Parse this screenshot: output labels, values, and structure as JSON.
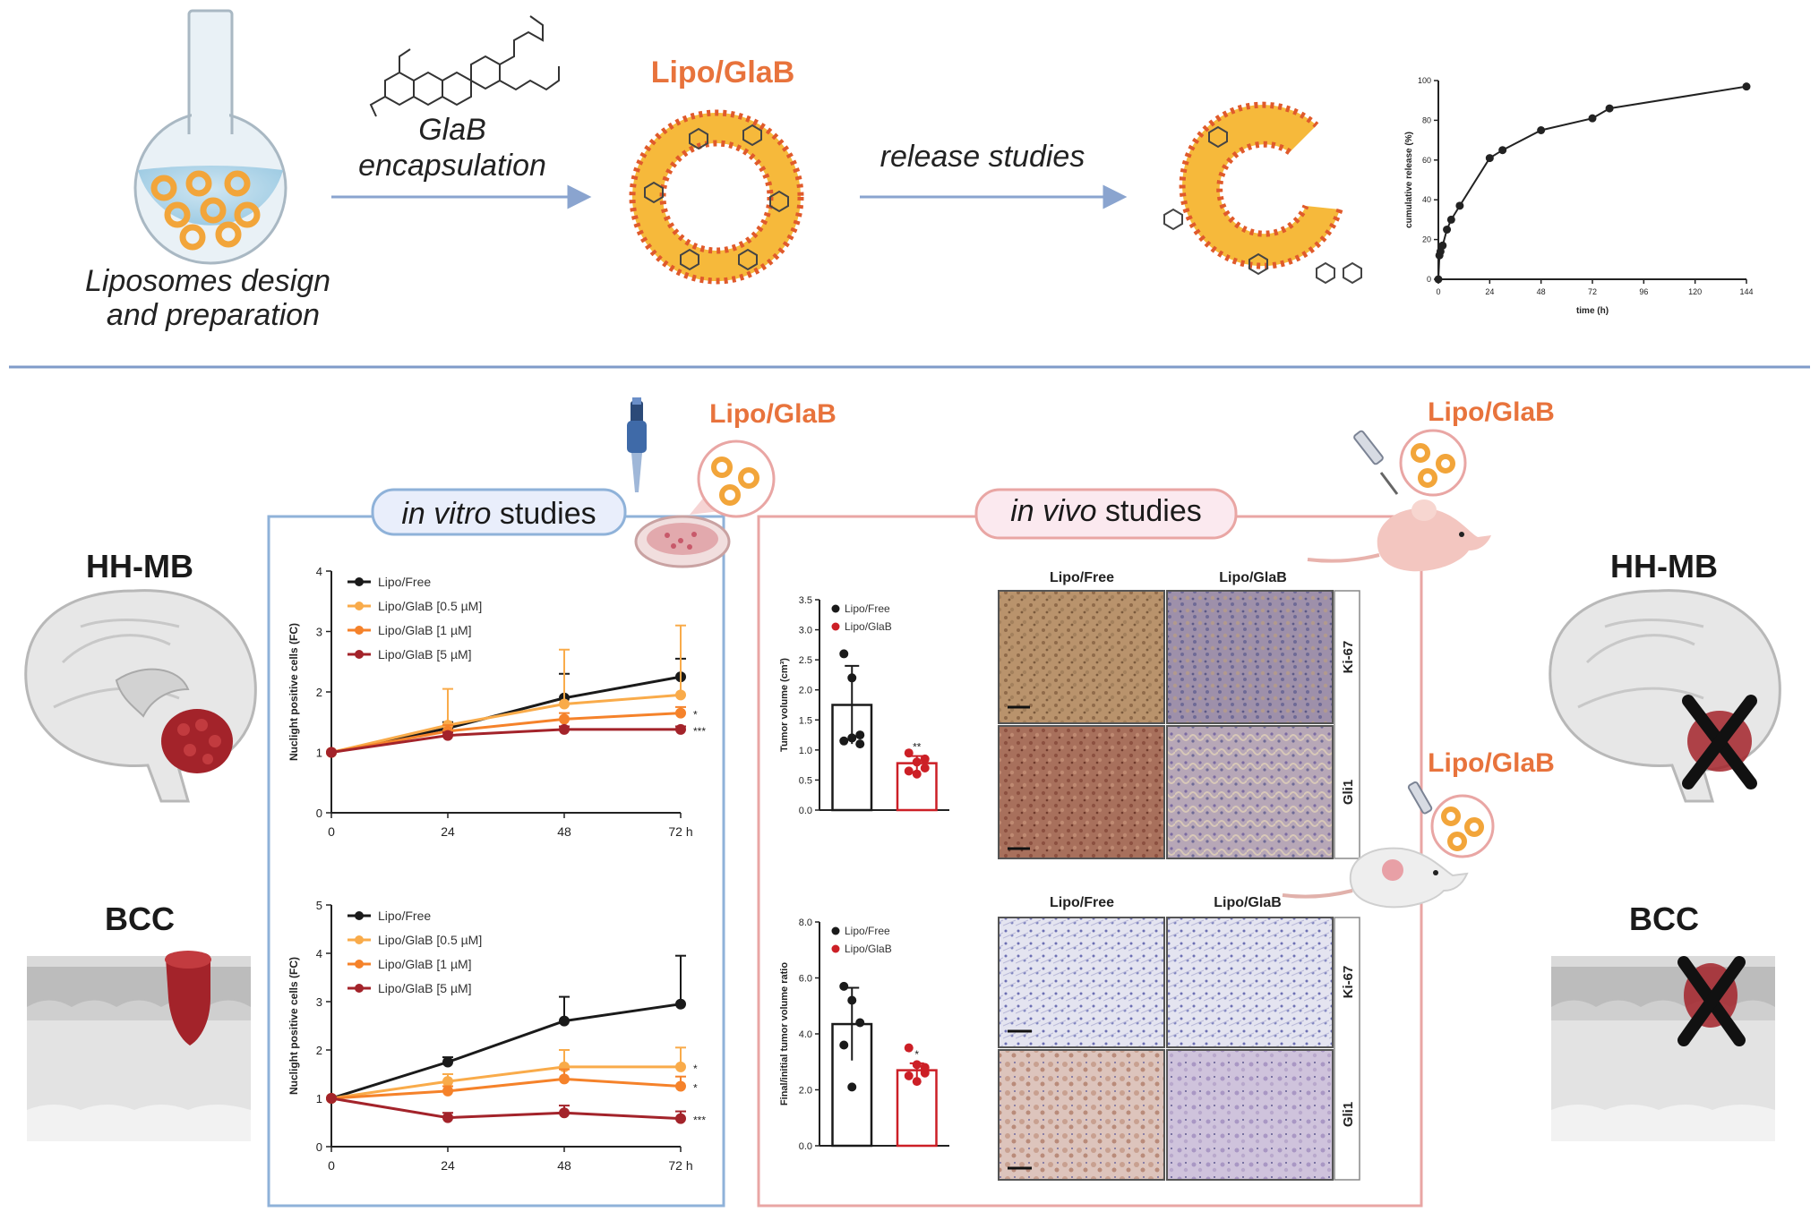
{
  "header": {
    "prep_label_line1": "Liposomes design",
    "prep_label_line2": "and preparation",
    "encap_label_line1": "GlaB",
    "encap_label_line2": "encapsulation",
    "lipo_title": "Lipo/GlaB",
    "release_label": "release studies"
  },
  "labels": {
    "lipo_glab": "Lipo/GlaB",
    "hh_mb": "HH-MB",
    "bcc": "BCC",
    "in_vitro_italic": "in vitro",
    "in_vivo_italic": "in vivo",
    "studies": " studies",
    "lipo_free": "Lipo/Free",
    "ki67": "Ki-67",
    "gli1": "Gli1"
  },
  "colors": {
    "orange": "#e8733c",
    "blue_frame": "#8fb2d9",
    "pink_frame": "#e9a6a4",
    "dark_red": "#a3232a",
    "black": "#1a1a1a",
    "mid_orange": "#f5822a",
    "light_orange": "#f9ab4a"
  },
  "chart_data": [
    {
      "type": "line",
      "x": [
        0,
        0.5,
        1,
        2,
        4,
        6,
        10,
        24,
        30,
        48,
        72,
        80,
        144
      ],
      "values": [
        0,
        12,
        14,
        17,
        25,
        30,
        37,
        61,
        65,
        75,
        81,
        86,
        97
      ],
      "xticks": [
        "0",
        "24",
        "48",
        "72",
        "96",
        "120",
        "144"
      ],
      "yticks": [
        "0",
        "20",
        "40",
        "60",
        "80",
        "100"
      ],
      "xlabel": "time (h)",
      "ylabel": "cumulative release (%)",
      "xlim": [
        0,
        144
      ],
      "ylim": [
        0,
        100
      ]
    },
    {
      "type": "line",
      "x": [
        0,
        24,
        48,
        72
      ],
      "xticks": [
        "0",
        "24",
        "48",
        "72 h"
      ],
      "yticks": [
        "0",
        "1",
        "2",
        "3",
        "4"
      ],
      "ylabel": "Nuclight positive cells (FC)",
      "ylim": [
        0,
        4
      ],
      "legend_position": "top-left",
      "series": [
        {
          "name": "Lipo/Free",
          "values": [
            1,
            1.4,
            1.9,
            2.25
          ],
          "errors": [
            0,
            0.1,
            0.4,
            0.3
          ],
          "color": "#1a1a1a",
          "sig": ""
        },
        {
          "name": "Lipo/GlaB [0.5 µM]",
          "values": [
            1,
            1.45,
            1.8,
            1.95
          ],
          "errors": [
            0,
            0.6,
            0.9,
            1.15
          ],
          "color": "#f9ab4a",
          "sig": ""
        },
        {
          "name": "Lipo/GlaB [1 µM]",
          "values": [
            1,
            1.35,
            1.55,
            1.65
          ],
          "errors": [
            0,
            0.1,
            0.1,
            0.1
          ],
          "color": "#f5822a",
          "sig": "*"
        },
        {
          "name": "Lipo/GlaB [5 µM]",
          "values": [
            1,
            1.28,
            1.38,
            1.38
          ],
          "errors": [
            0,
            0.05,
            0.05,
            0.05
          ],
          "color": "#a3232a",
          "sig": "***"
        }
      ]
    },
    {
      "type": "line",
      "x": [
        0,
        24,
        48,
        72
      ],
      "xticks": [
        "0",
        "24",
        "48",
        "72 h"
      ],
      "yticks": [
        "0",
        "1",
        "2",
        "3",
        "4",
        "5"
      ],
      "ylabel": "Nuclight positive cells (FC)",
      "ylim": [
        0,
        5
      ],
      "legend_position": "top-left",
      "series": [
        {
          "name": "Lipo/Free",
          "values": [
            1,
            1.75,
            2.6,
            2.95
          ],
          "errors": [
            0,
            0.1,
            0.5,
            1.0
          ],
          "color": "#1a1a1a",
          "sig": ""
        },
        {
          "name": "Lipo/GlaB [0.5 µM]",
          "values": [
            1,
            1.35,
            1.65,
            1.65
          ],
          "errors": [
            0,
            0.15,
            0.35,
            0.4
          ],
          "color": "#f9ab4a",
          "sig": "*"
        },
        {
          "name": "Lipo/GlaB [1 µM]",
          "values": [
            1,
            1.15,
            1.4,
            1.25
          ],
          "errors": [
            0,
            0.1,
            0.2,
            0.2
          ],
          "color": "#f5822a",
          "sig": "*"
        },
        {
          "name": "Lipo/GlaB [5 µM]",
          "values": [
            1,
            0.6,
            0.7,
            0.58
          ],
          "errors": [
            0,
            0.1,
            0.15,
            0.15
          ],
          "color": "#a3232a",
          "sig": "***"
        }
      ]
    },
    {
      "type": "bar",
      "categories": [
        "Lipo/Free",
        "Lipo/GlaB"
      ],
      "values": [
        1.75,
        0.78
      ],
      "errors": [
        0.65,
        0.12
      ],
      "points": [
        [
          2.6,
          2.2,
          1.1,
          1.15,
          1.2,
          1.25
        ],
        [
          0.95,
          0.6,
          0.85,
          0.65,
          0.8,
          0.7
        ]
      ],
      "colors": [
        "#1a1a1a",
        "#cc1f26"
      ],
      "sig": [
        "",
        "**"
      ],
      "ylabel": "Tumor volume (cm³)",
      "yticks": [
        "0.0",
        "0.5",
        "1.0",
        "1.5",
        "2.0",
        "2.5",
        "3.0",
        "3.5"
      ],
      "ylim": [
        0,
        3.5
      ],
      "legend_position": "top-left"
    },
    {
      "type": "bar",
      "categories": [
        "Lipo/Free",
        "Lipo/GlaB"
      ],
      "values": [
        4.35,
        2.7
      ],
      "errors": [
        1.3,
        0.25
      ],
      "points": [
        [
          5.7,
          5.2,
          4.4,
          3.6,
          2.1
        ],
        [
          3.5,
          2.9,
          2.6,
          2.5,
          2.3,
          2.8
        ]
      ],
      "colors": [
        "#1a1a1a",
        "#cc1f26"
      ],
      "sig": [
        "",
        "*"
      ],
      "ylabel": "Final/initial tumor volume ratio",
      "yticks": [
        "0.0",
        "2.0",
        "4.0",
        "6.0",
        "8.0"
      ],
      "ylim": [
        0,
        8
      ],
      "legend_position": "top-left"
    }
  ]
}
